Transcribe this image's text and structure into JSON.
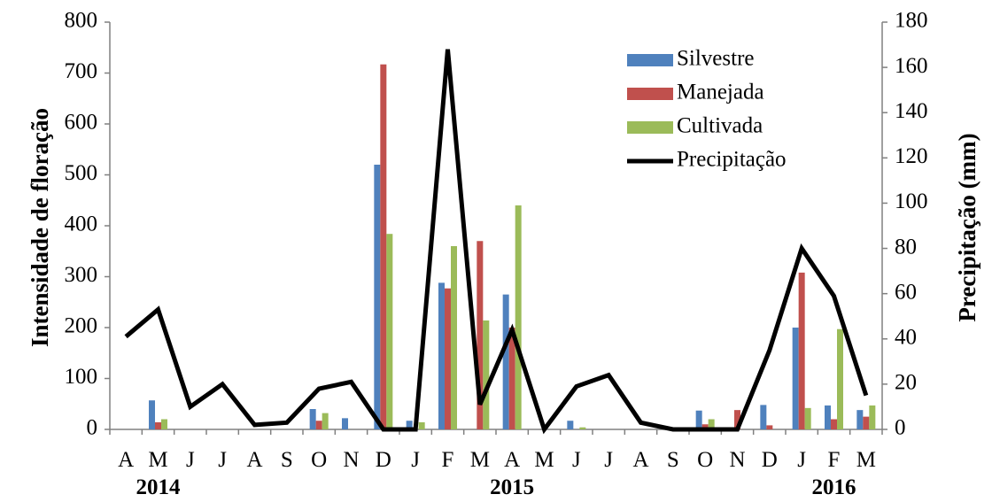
{
  "chart_data": {
    "type": "bar",
    "categories": [
      "A",
      "M",
      "J",
      "J",
      "A",
      "S",
      "O",
      "N",
      "D",
      "J",
      "F",
      "M",
      "A",
      "M",
      "J",
      "J",
      "A",
      "S",
      "O",
      "N",
      "D",
      "J",
      "F",
      "M"
    ],
    "years": [
      {
        "label": "2014",
        "index": 1
      },
      {
        "label": "2015",
        "index": 12
      },
      {
        "label": "2016",
        "index": 22
      }
    ],
    "series": [
      {
        "name": "Silvestre",
        "color": "#4f81bd",
        "axis": "left",
        "values": [
          0,
          57,
          0,
          0,
          0,
          0,
          40,
          22,
          520,
          17,
          288,
          0,
          265,
          0,
          17,
          0,
          0,
          0,
          37,
          0,
          48,
          200,
          47,
          38
        ]
      },
      {
        "name": "Manejada",
        "color": "#c0504d",
        "axis": "left",
        "values": [
          0,
          14,
          0,
          0,
          0,
          0,
          17,
          0,
          717,
          0,
          277,
          370,
          200,
          0,
          0,
          0,
          0,
          0,
          10,
          38,
          8,
          308,
          20,
          25
        ]
      },
      {
        "name": "Cultivada",
        "color": "#9bbb59",
        "axis": "left",
        "values": [
          0,
          20,
          0,
          0,
          0,
          0,
          32,
          0,
          384,
          14,
          360,
          214,
          440,
          0,
          4,
          0,
          0,
          0,
          20,
          0,
          0,
          42,
          197,
          47
        ]
      },
      {
        "name": "Precipitação",
        "color": "#000000",
        "type": "line",
        "axis": "right",
        "values": [
          41,
          53,
          10,
          20,
          2,
          3,
          18,
          21,
          0,
          0,
          168,
          11,
          44,
          0,
          19,
          24,
          3,
          0,
          0,
          0,
          35,
          80,
          59,
          15
        ]
      }
    ],
    "ylabel": "Intensidade de floração",
    "y2label": "Precipitação (mm)",
    "ylim": [
      0,
      800
    ],
    "y2lim": [
      0,
      180
    ],
    "yticks": [
      "0",
      "100",
      "200",
      "300",
      "400",
      "500",
      "600",
      "700",
      "800"
    ],
    "y2ticks": [
      "0",
      "20",
      "40",
      "60",
      "80",
      "100",
      "120",
      "140",
      "160",
      "180"
    ],
    "legend_position": "top-right",
    "grid": false
  }
}
